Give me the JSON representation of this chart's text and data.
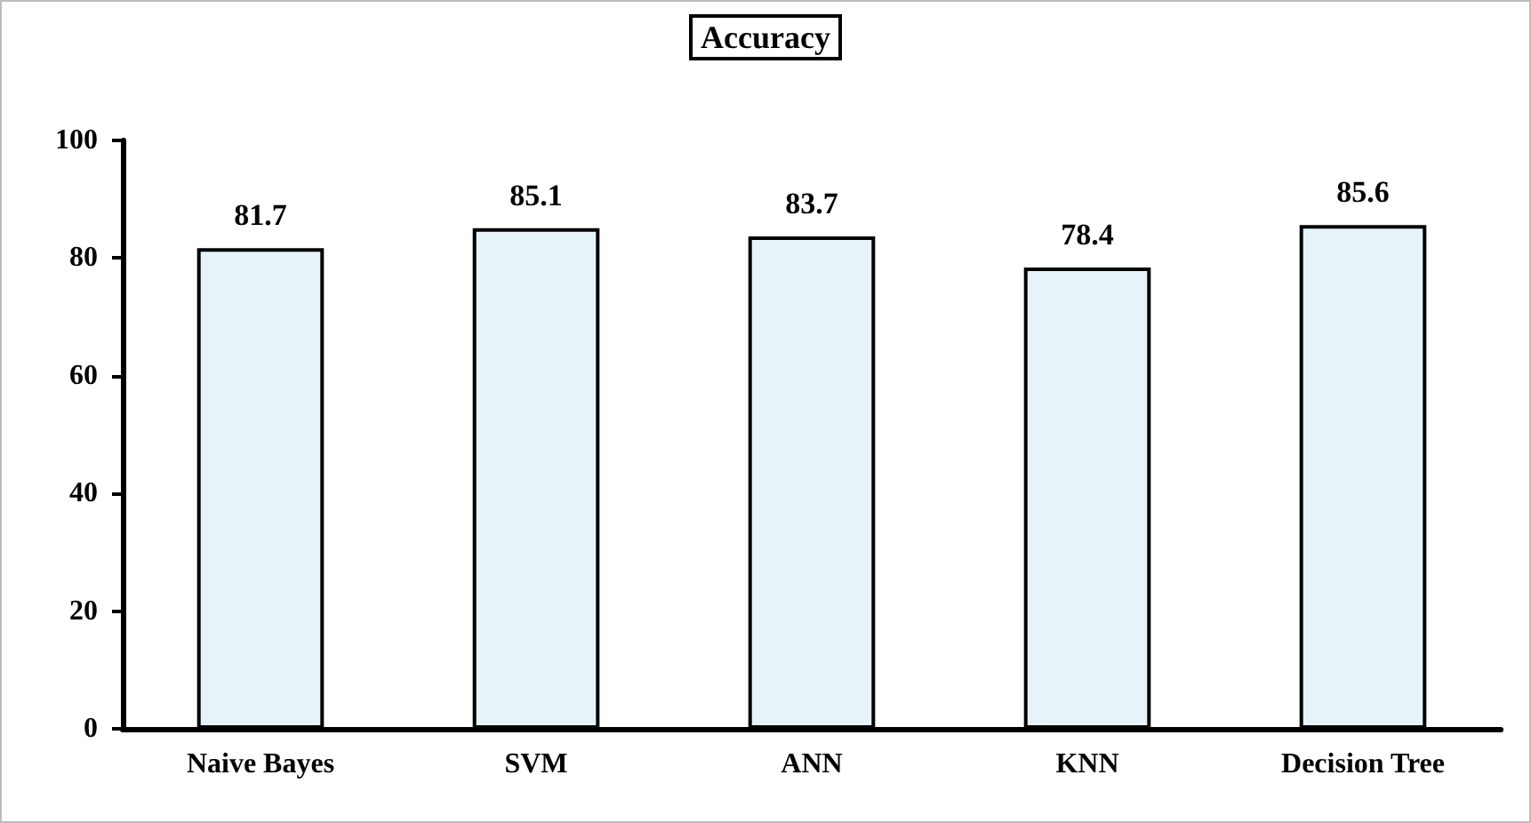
{
  "chart_data": {
    "type": "bar",
    "title": "Accuracy",
    "categories": [
      "Naive Bayes",
      "SVM",
      "ANN",
      "KNN",
      "Decision Tree"
    ],
    "values": [
      81.7,
      85.1,
      83.7,
      78.4,
      85.6
    ],
    "color": "#e6f3f8",
    "ylim": [
      0,
      100
    ],
    "yticks": [
      0,
      20,
      40,
      60,
      80,
      100
    ],
    "grid": false,
    "data_labels": true
  }
}
